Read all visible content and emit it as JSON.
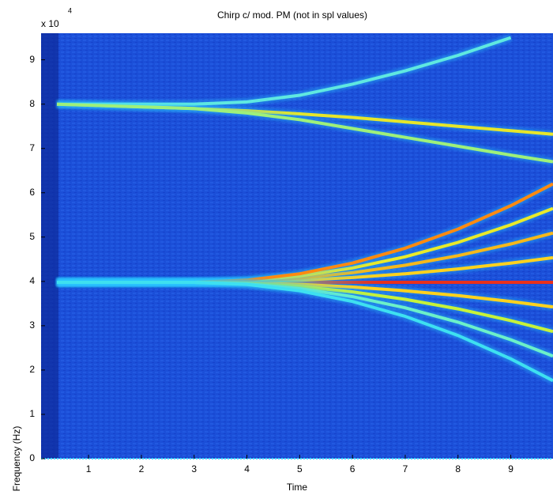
{
  "chart_data": {
    "type": "spectrogram",
    "title": "Chirp c/ mod. PM (not in spl values)",
    "xlabel": "Time",
    "ylabel": "Frequency (Hz)",
    "y_multiplier": {
      "base": "x 10",
      "exponent": "4"
    },
    "xlim": [
      0.1,
      9.8
    ],
    "ylim": [
      0,
      96000
    ],
    "xticks": [
      1,
      2,
      3,
      4,
      5,
      6,
      7,
      8,
      9
    ],
    "yticks": [
      {
        "value": 0,
        "label": "0"
      },
      {
        "value": 10000,
        "label": "1"
      },
      {
        "value": 20000,
        "label": "2"
      },
      {
        "value": 30000,
        "label": "3"
      },
      {
        "value": 40000,
        "label": "4"
      },
      {
        "value": 50000,
        "label": "5"
      },
      {
        "value": 60000,
        "label": "6"
      },
      {
        "value": 70000,
        "label": "7"
      },
      {
        "value": 80000,
        "label": "8"
      },
      {
        "value": 90000,
        "label": "9"
      }
    ],
    "background_color": "#1b4fd8",
    "x": [
      0.4,
      3,
      4,
      5,
      6,
      7,
      8,
      9,
      9.8
    ],
    "series": [
      {
        "color": "#e8301c",
        "values": [
          39800,
          39800,
          39800,
          39800,
          39800,
          39800,
          39800,
          39800,
          39800
        ]
      },
      {
        "color": "#ffd21e",
        "values": [
          39800,
          39800,
          39920,
          40280,
          40880,
          41720,
          42800,
          44120,
          45350
        ]
      },
      {
        "color": "#f5b81b",
        "values": [
          39800,
          39800,
          40040,
          40760,
          41960,
          43640,
          45800,
          48440,
          50900
        ]
      },
      {
        "color": "#e9ea2a",
        "values": [
          39800,
          39800,
          40160,
          41240,
          43040,
          45560,
          48800,
          52760,
          56450
        ]
      },
      {
        "color": "#ff8a10",
        "values": [
          39800,
          39800,
          40280,
          41720,
          44120,
          47480,
          51800,
          57080,
          62000
        ]
      },
      {
        "color": "#ffd21e",
        "values": [
          39800,
          39800,
          39680,
          39320,
          38720,
          37880,
          36800,
          35480,
          34250
        ]
      },
      {
        "color": "#c6f23a",
        "values": [
          39800,
          39800,
          39560,
          38840,
          37640,
          35960,
          33800,
          31160,
          28700
        ]
      },
      {
        "color": "#6cf0c8",
        "values": [
          39800,
          39800,
          39440,
          38360,
          36560,
          34040,
          30800,
          26840,
          23150
        ]
      },
      {
        "color": "#3ee0f0",
        "values": [
          39800,
          39800,
          39320,
          37880,
          35480,
          32120,
          27800,
          22520,
          17600
        ]
      },
      {
        "color": "#e6e62a",
        "values": [
          80000,
          79000,
          78500,
          77800,
          77000,
          76000,
          75000,
          74000,
          73200
        ]
      },
      {
        "color": "#5fe8e0",
        "values": [
          80000,
          80000,
          80500,
          82000,
          84500,
          87500,
          91000,
          95000,
          null
        ]
      },
      {
        "color": "#9ef07a",
        "values": [
          80000,
          79000,
          78000,
          76500,
          74500,
          72500,
          70500,
          68500,
          67000
        ]
      }
    ]
  }
}
